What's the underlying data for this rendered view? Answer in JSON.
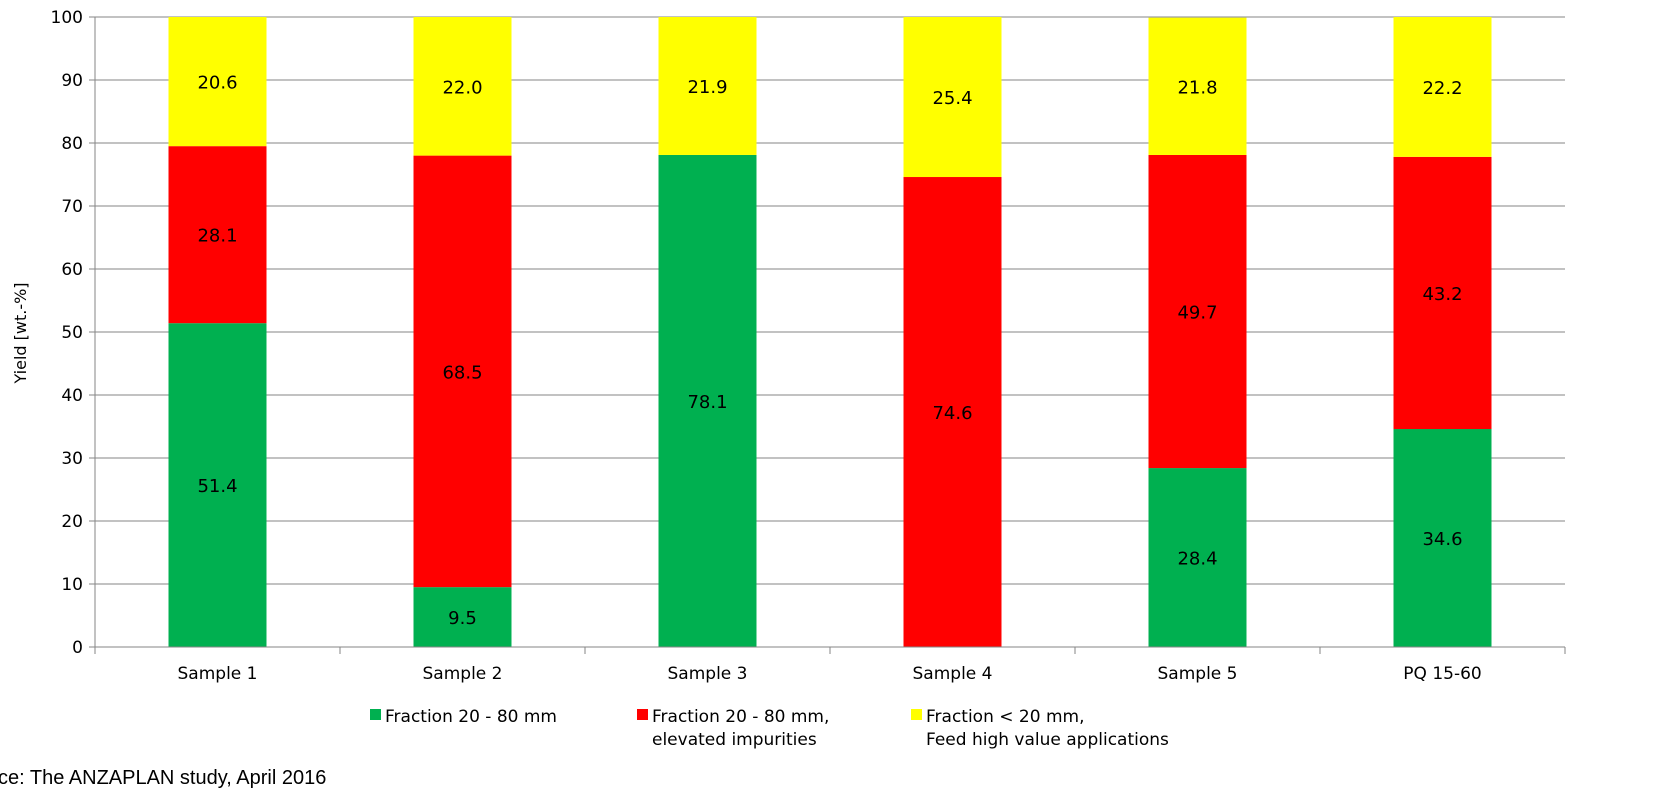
{
  "chart_data": {
    "type": "bar",
    "stacked": true,
    "categories": [
      "Sample 1",
      "Sample 2",
      "Sample 3",
      "Sample 4",
      "Sample 5",
      "PQ 15-60"
    ],
    "series": [
      {
        "name": "Fraction 20 - 80 mm",
        "color": "#00B050",
        "values": [
          51.4,
          9.5,
          78.1,
          0,
          28.4,
          34.6
        ]
      },
      {
        "name": "Fraction 20 - 80 mm, elevated impurities",
        "legend_lines": [
          "Fraction 20 - 80 mm,",
          "elevated impurities"
        ],
        "color": "#FF0000",
        "values": [
          28.1,
          68.5,
          0,
          74.6,
          49.7,
          43.2
        ]
      },
      {
        "name": "Fraction < 20 mm, Feed high value applications",
        "legend_lines": [
          "Fraction < 20 mm,",
          "Feed high value applications"
        ],
        "color": "#FFFF00",
        "values": [
          20.6,
          22.0,
          21.9,
          25.4,
          21.8,
          22.2
        ]
      }
    ],
    "ylabel": "Yield [wt.-%]",
    "ylim": [
      0,
      100
    ],
    "yticks": [
      0,
      10,
      20,
      30,
      40,
      50,
      60,
      70,
      80,
      90,
      100
    ],
    "grid": true,
    "legend_position": "bottom"
  },
  "source_note": "ce: The ANZAPLAN study, April 2016"
}
